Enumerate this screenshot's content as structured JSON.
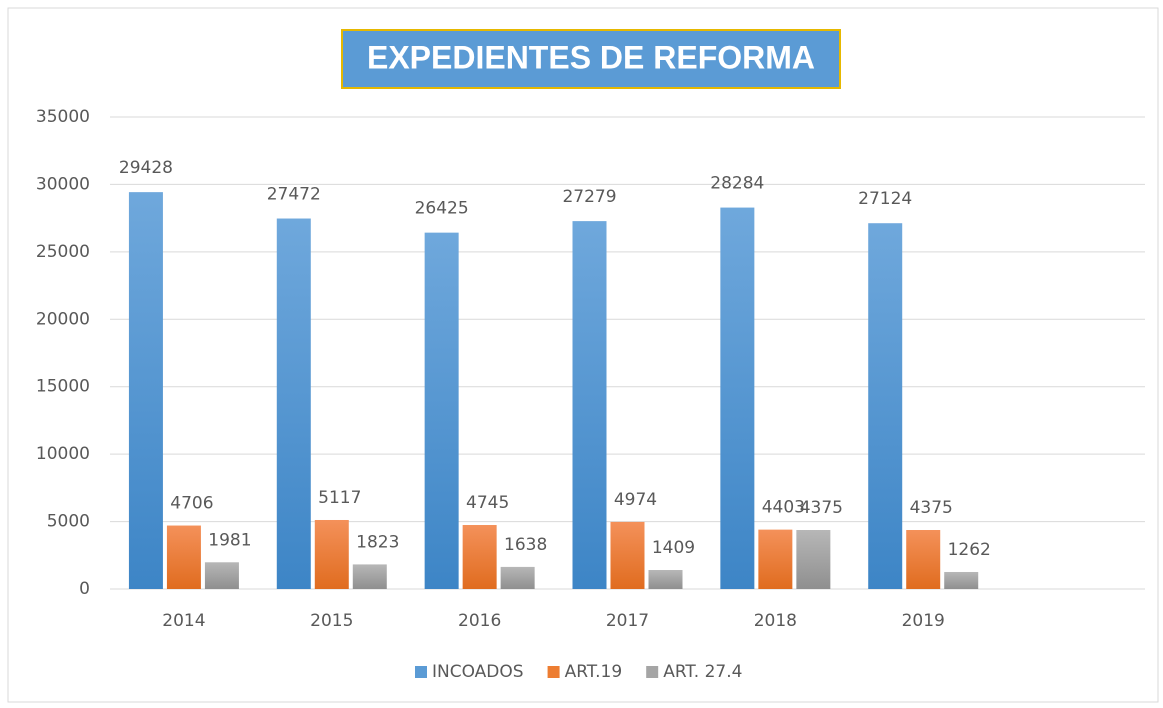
{
  "chart_data": {
    "type": "bar",
    "title": "EXPEDIENTES DE REFORMA",
    "categories": [
      "2014",
      "2015",
      "2016",
      "2017",
      "2018",
      "2019",
      null
    ],
    "series": [
      {
        "name": "INCOADOS",
        "color": "#5b9bd5",
        "values": [
          29428,
          27472,
          26425,
          27279,
          28284,
          27124,
          null
        ]
      },
      {
        "name": "ART.19",
        "color": "#ed7d31",
        "values": [
          4706,
          5117,
          4745,
          4974,
          4403,
          4375,
          null
        ]
      },
      {
        "name": "ART. 27.4",
        "color": "#a5a5a5",
        "values": [
          1981,
          1823,
          1638,
          1409,
          4375,
          1262,
          null
        ]
      }
    ],
    "ylim": [
      0,
      35000
    ],
    "yticks": [
      0,
      5000,
      10000,
      15000,
      20000,
      25000,
      30000,
      35000
    ],
    "grid": true,
    "legend": "bottom"
  }
}
